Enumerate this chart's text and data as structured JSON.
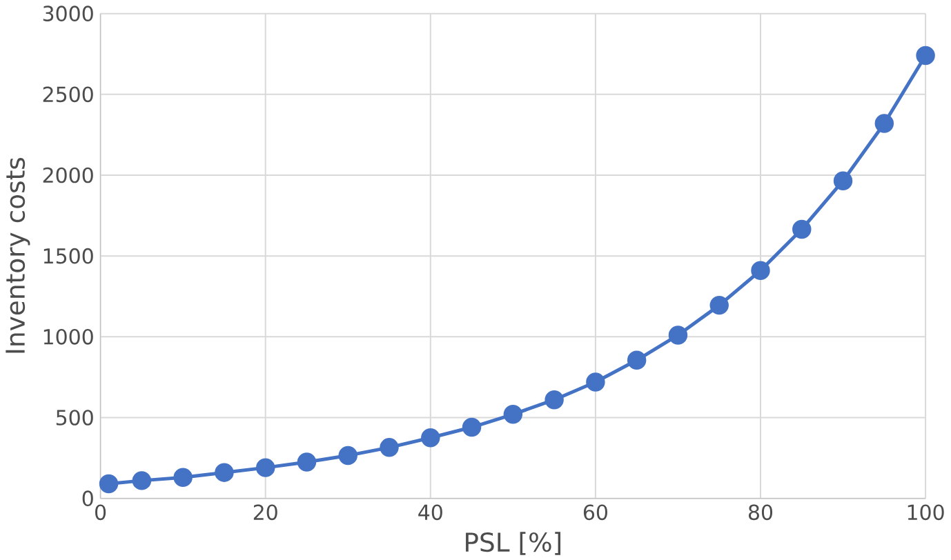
{
  "chart_data": {
    "type": "line",
    "xlabel": "PSL [%]",
    "ylabel": "Inventory costs",
    "x": [
      1,
      5,
      10,
      15,
      20,
      25,
      30,
      35,
      40,
      45,
      50,
      55,
      60,
      65,
      70,
      75,
      80,
      85,
      90,
      95,
      100
    ],
    "series": [
      {
        "color": "#4472c4",
        "values": [
          90,
          110,
          130,
          160,
          190,
          225,
          265,
          315,
          375,
          440,
          520,
          610,
          720,
          855,
          1010,
          1195,
          1410,
          1665,
          1965,
          2320,
          2740
        ]
      }
    ],
    "xlim": [
      0,
      100
    ],
    "xticks": [
      0,
      20,
      40,
      60,
      80,
      100
    ],
    "ylim": [
      0,
      3000
    ],
    "yticks": [
      0,
      500,
      1000,
      1500,
      2000,
      2500,
      3000
    ],
    "grid": true,
    "marker": "circle",
    "line_style": "solid"
  }
}
